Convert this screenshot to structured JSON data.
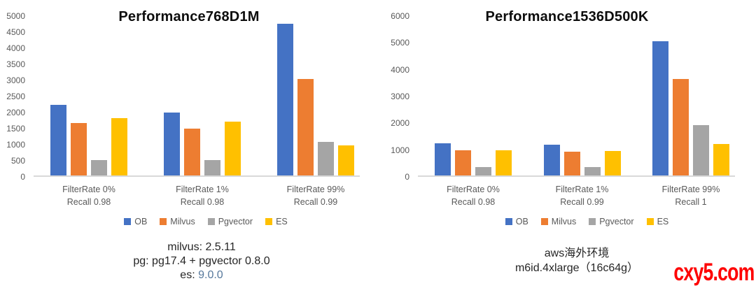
{
  "chart_data": [
    {
      "type": "bar",
      "title": "Performance768D1M",
      "categories": [
        [
          "FilterRate 0%",
          "Recall 0.98"
        ],
        [
          "FilterRate 1%",
          "Recall 0.98"
        ],
        [
          "FilterRate 99%",
          "Recall 0.99"
        ]
      ],
      "series": [
        {
          "name": "OB",
          "color": "#4472C4",
          "values": [
            2200,
            1950,
            4720
          ]
        },
        {
          "name": "Milvus",
          "color": "#ED7D31",
          "values": [
            1640,
            1450,
            3000
          ]
        },
        {
          "name": "Pgvector",
          "color": "#A5A5A5",
          "values": [
            470,
            470,
            1050
          ]
        },
        {
          "name": "ES",
          "color": "#FFC000",
          "values": [
            1780,
            1680,
            930
          ]
        }
      ],
      "ylim": [
        0,
        5000
      ],
      "ytick_step": 500,
      "grid": false,
      "legend_position": "bottom"
    },
    {
      "type": "bar",
      "title": "Performance1536D500K",
      "categories": [
        [
          "FilterRate 0%",
          "Recall 0.98"
        ],
        [
          "FilterRate 1%",
          "Recall 0.99"
        ],
        [
          "FilterRate 99%",
          "Recall 1"
        ]
      ],
      "series": [
        {
          "name": "OB",
          "color": "#4472C4",
          "values": [
            1200,
            1150,
            5000
          ]
        },
        {
          "name": "Milvus",
          "color": "#ED7D31",
          "values": [
            930,
            900,
            3600
          ]
        },
        {
          "name": "Pgvector",
          "color": "#A5A5A5",
          "values": [
            320,
            320,
            1870
          ]
        },
        {
          "name": "ES",
          "color": "#FFC000",
          "values": [
            950,
            910,
            1170
          ]
        }
      ],
      "ylim": [
        0,
        6000
      ],
      "ytick_step": 1000,
      "grid": false,
      "legend_position": "bottom"
    }
  ],
  "footnotes": {
    "left": {
      "line1": "milvus: 2.5.11",
      "line2": "pg: pg17.4 + pgvector 0.8.0",
      "line3_prefix": "es: ",
      "line3_value": "9.0.0",
      "line3_value_color": "#56789c"
    },
    "right": {
      "line1": "aws海外环境",
      "line2": "m6id.4xlarge（16c64g）"
    }
  },
  "watermark": {
    "text": "cxy5.com",
    "color": "#fe0000"
  }
}
